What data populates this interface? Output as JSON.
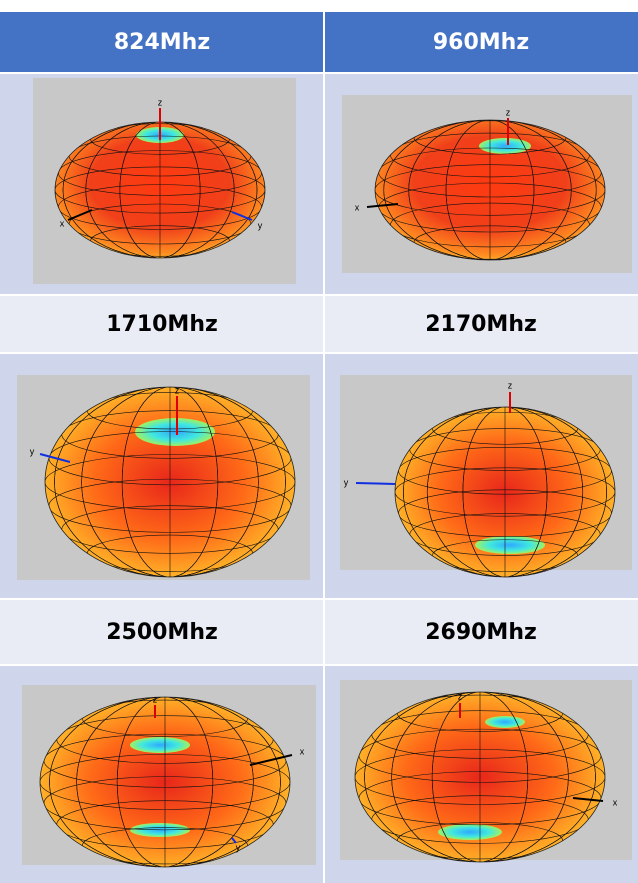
{
  "table": {
    "header": [
      "824Mhz",
      "960Mhz"
    ],
    "label_rows": [
      [
        "1710Mhz",
        "2170Mhz"
      ],
      [
        "2500Mhz",
        "2690Mhz"
      ]
    ],
    "plots": [
      {
        "axes": [
          "z",
          "x",
          "y"
        ]
      },
      {
        "axes": [
          "z",
          "x"
        ]
      },
      {
        "axes": [
          "z",
          "y"
        ]
      },
      {
        "axes": [
          "z",
          "y"
        ]
      },
      {
        "axes": [
          "z",
          "x",
          "y"
        ]
      },
      {
        "axes": [
          "z",
          "x"
        ]
      }
    ]
  }
}
